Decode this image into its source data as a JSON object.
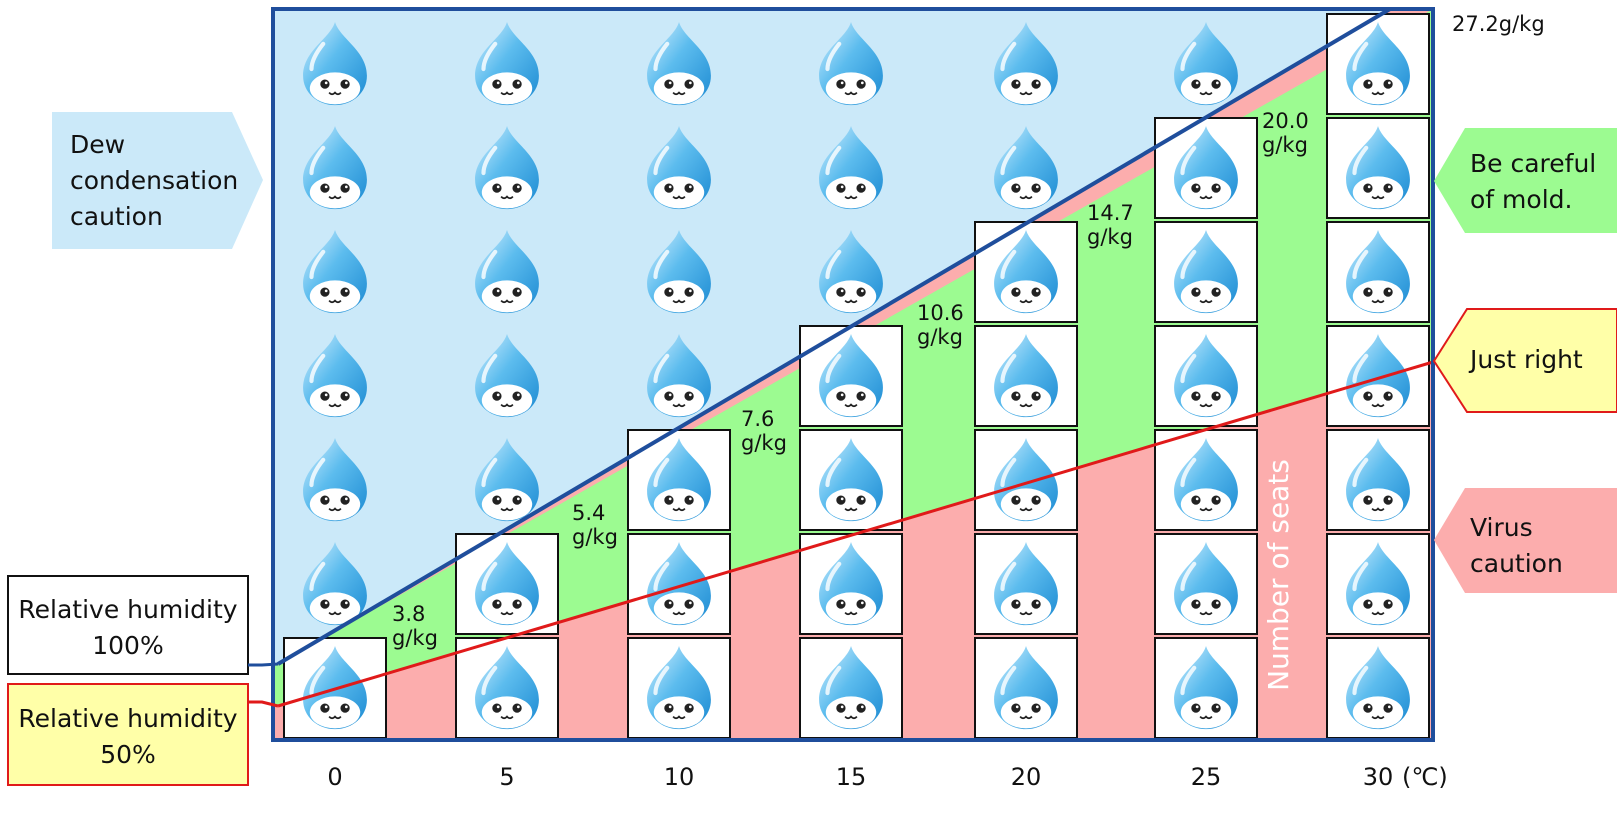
{
  "chart_data": {
    "type": "bar",
    "title": "",
    "x_unit": "(℃)",
    "categories": [
      "0",
      "5",
      "10",
      "15",
      "20",
      "25",
      "30"
    ],
    "series": [
      {
        "name": "Number of seats",
        "values": [
          1,
          2,
          3,
          4,
          5,
          6,
          7
        ]
      }
    ],
    "saturation_labels": [
      "3.8\ng/kg",
      "5.4\ng/kg",
      "7.6\ng/kg",
      "10.6\ng/kg",
      "14.7\ng/kg",
      "20.0\ng/kg",
      "27.2g/kg"
    ],
    "saturation_values_g_per_kg": [
      3.8,
      5.4,
      7.6,
      10.6,
      14.7,
      20.0,
      27.2
    ],
    "ylim": [
      0,
      7
    ],
    "grid": false,
    "bar_label": "Number of seats",
    "lines": [
      {
        "name": "Relative humidity 100%",
        "label": "Relative humidity\n100%",
        "color": "#1f4e9c"
      },
      {
        "name": "Relative humidity 50%",
        "label": "Relative humidity\n50%",
        "color": "#e01a1a"
      }
    ],
    "zones": [
      {
        "label": "Dew\ncondensation\ncaution",
        "color": "#cbe9f9"
      },
      {
        "label": "Be careful\nof mold.",
        "color": "#9cfb91"
      },
      {
        "label": "Just right",
        "color": "#ffffa8"
      },
      {
        "label": "Virus\ncaution",
        "color": "#fcadad"
      }
    ],
    "colors": {
      "frame": "#1f4e9c",
      "sky": "#cbe9f9",
      "mold": "#9cfb91",
      "virus": "#fcadad",
      "just_right": "#ffffa8",
      "drop_light": "#d7f1ff",
      "drop_mid": "#5cbcee",
      "drop_dark": "#1c8ad2",
      "drop_face": "#ffffff"
    }
  }
}
